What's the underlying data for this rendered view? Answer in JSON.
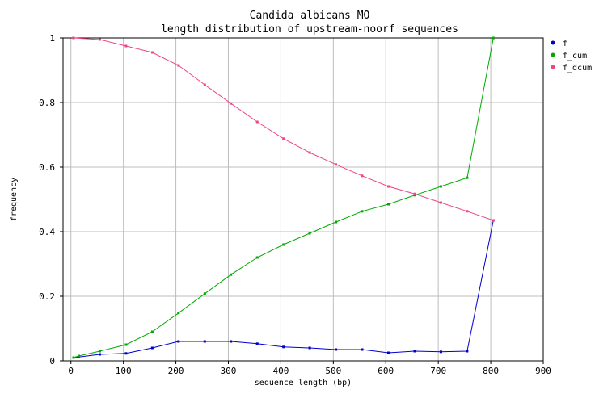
{
  "chart_data": {
    "type": "line",
    "title": "Candida albicans MO",
    "subtitle": "length distribution of upstream-noorf sequences",
    "xlabel": "sequence length (bp)",
    "ylabel": "frequency",
    "xlim": [
      -15,
      900
    ],
    "ylim": [
      0,
      1
    ],
    "xticks": [
      0,
      100,
      200,
      300,
      400,
      500,
      600,
      700,
      800,
      900
    ],
    "yticks": [
      0,
      0.2,
      0.4,
      0.6,
      0.8,
      1
    ],
    "ytick_labels": [
      "0",
      "0.2",
      "0.4",
      "0.6",
      "0.8",
      "1"
    ],
    "grid": true,
    "legend_position": "top-right",
    "series": [
      {
        "name": "f",
        "color": "#0000cc",
        "x": [
          5,
          15,
          55,
          105,
          155,
          205,
          255,
          305,
          355,
          405,
          455,
          505,
          555,
          605,
          655,
          705,
          755,
          805
        ],
        "y": [
          0.01,
          0.012,
          0.02,
          0.023,
          0.04,
          0.06,
          0.06,
          0.06,
          0.053,
          0.043,
          0.04,
          0.035,
          0.035,
          0.025,
          0.03,
          0.028,
          0.03,
          0.435
        ]
      },
      {
        "name": "f_cum",
        "color": "#00aa00",
        "x": [
          5,
          15,
          55,
          105,
          155,
          205,
          255,
          305,
          355,
          405,
          455,
          505,
          555,
          605,
          655,
          705,
          755,
          805
        ],
        "y": [
          0.01,
          0.015,
          0.03,
          0.05,
          0.09,
          0.148,
          0.208,
          0.267,
          0.32,
          0.36,
          0.395,
          0.43,
          0.463,
          0.485,
          0.513,
          0.54,
          0.567,
          1.0
        ]
      },
      {
        "name": "f_dcum",
        "color": "#ee4488",
        "x": [
          5,
          55,
          105,
          155,
          205,
          255,
          305,
          355,
          405,
          455,
          505,
          555,
          605,
          655,
          705,
          755,
          805
        ],
        "y": [
          1.0,
          0.995,
          0.975,
          0.955,
          0.915,
          0.855,
          0.797,
          0.74,
          0.688,
          0.645,
          0.608,
          0.573,
          0.54,
          0.517,
          0.49,
          0.463,
          0.435
        ]
      }
    ]
  }
}
